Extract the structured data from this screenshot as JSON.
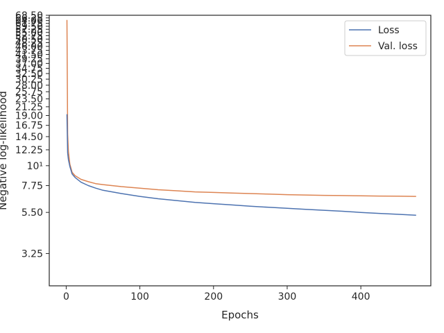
{
  "colors": {
    "loss": "#4c72b0",
    "val_loss": "#dd8452",
    "axes": "#262626"
  },
  "chart_data": {
    "type": "line",
    "title": "",
    "xlabel": "Epochs",
    "ylabel": "Negative log-likelihood",
    "yscale": "log",
    "xlim": [
      -23,
      495
    ],
    "ylim": [
      2.15,
      68.5
    ],
    "xticks": [
      0,
      100,
      200,
      300,
      400
    ],
    "xtick_labels": [
      "0",
      "100",
      "200",
      "300",
      "400"
    ],
    "yticks": [
      3.25,
      5.5,
      7.75,
      10,
      12.25,
      14.5,
      16.75,
      19.0,
      21.25,
      23.5,
      25.75,
      28.0,
      30.25,
      32.5,
      34.75,
      37.0,
      39.25,
      41.5,
      43.75,
      46.0,
      48.25,
      50.5,
      52.75,
      55.0,
      57.25,
      59.5,
      61.75,
      64.0,
      66.25,
      68.5
    ],
    "ytick_labels": [
      "3.25",
      "5.50",
      "7.75",
      "10¹",
      "12.25",
      "14.50",
      "16.75",
      "19.00",
      "21.25",
      "23.50",
      "25.75",
      "28.00",
      "30.25",
      "32.50",
      "34.75",
      "37.00",
      "39.25",
      "41.50",
      "43.75",
      "46.00",
      "48.25",
      "50.50",
      "52.75",
      "55.00",
      "57.25",
      "59.50",
      "61.75",
      "64.00",
      "66.25",
      "68.50"
    ],
    "grid": false,
    "legend_position": "top-right",
    "series": [
      {
        "name": "Loss",
        "x": [
          1,
          2,
          3,
          5,
          8,
          12,
          20,
          30,
          40,
          50,
          75,
          100,
          125,
          150,
          175,
          200,
          225,
          250,
          275,
          300,
          325,
          350,
          375,
          400,
          425,
          450,
          475
        ],
        "y": [
          19.3,
          11.8,
          10.8,
          9.9,
          9.0,
          8.6,
          8.1,
          7.75,
          7.5,
          7.3,
          7.0,
          6.75,
          6.55,
          6.4,
          6.25,
          6.15,
          6.05,
          5.95,
          5.87,
          5.8,
          5.72,
          5.65,
          5.58,
          5.5,
          5.43,
          5.37,
          5.3
        ]
      },
      {
        "name": "Val. loss",
        "x": [
          1,
          2,
          3,
          5,
          8,
          12,
          20,
          30,
          40,
          50,
          75,
          100,
          125,
          150,
          175,
          200,
          225,
          250,
          275,
          300,
          325,
          350,
          375,
          400,
          425,
          450,
          475
        ],
        "y": [
          64.5,
          15.0,
          12.0,
          10.2,
          9.2,
          8.8,
          8.4,
          8.15,
          7.95,
          7.85,
          7.65,
          7.5,
          7.35,
          7.25,
          7.15,
          7.1,
          7.05,
          7.0,
          6.95,
          6.9,
          6.87,
          6.84,
          6.82,
          6.8,
          6.78,
          6.77,
          6.75
        ]
      }
    ]
  }
}
